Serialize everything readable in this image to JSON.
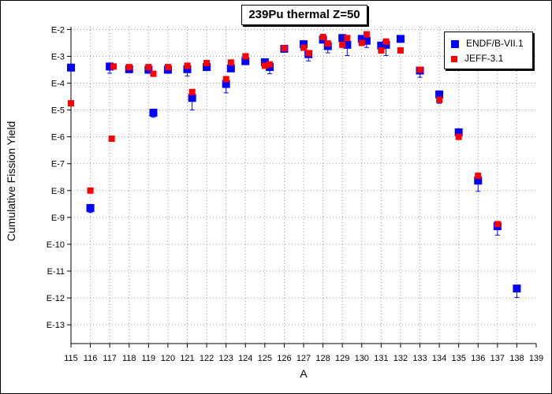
{
  "chart_data": {
    "type": "scatter",
    "title": "239Pu thermal Z=50",
    "xlabel": "A",
    "ylabel": "Cumulative Fission Yield",
    "xlim": [
      115,
      139
    ],
    "ylim_exp": [
      -13.7,
      -1.9
    ],
    "x_ticks": [
      "115",
      "116",
      "117",
      "118",
      "119",
      "120",
      "121",
      "122",
      "123",
      "124",
      "125",
      "126",
      "127",
      "128",
      "129",
      "130",
      "131",
      "132",
      "133",
      "134",
      "135",
      "136",
      "137",
      "138",
      "139"
    ],
    "y_ticks": [
      "E-2",
      "E-3",
      "E-4",
      "E-5",
      "E-6",
      "E-7",
      "E-8",
      "E-9",
      "E-10",
      "E-11",
      "E-12",
      "E-13"
    ],
    "grid": true,
    "legend_position": "top-right",
    "series": [
      {
        "name": "ENDF/B-VII.1",
        "color": "#0000ff",
        "marker": "square",
        "points": [
          {
            "x": 115.0,
            "y": -3.42
          },
          {
            "x": 116.0,
            "y": -8.65,
            "err": 0.17
          },
          {
            "x": 117.0,
            "y": -3.38,
            "err": 0.25
          },
          {
            "x": 118.0,
            "y": -3.48
          },
          {
            "x": 119.0,
            "y": -3.5
          },
          {
            "x": 119.25,
            "y": -5.1,
            "err": 0.17
          },
          {
            "x": 120.0,
            "y": -3.5
          },
          {
            "x": 121.0,
            "y": -3.48,
            "err": 0.25
          },
          {
            "x": 121.25,
            "y": -4.55,
            "err": 0.45
          },
          {
            "x": 122.0,
            "y": -3.4
          },
          {
            "x": 123.0,
            "y": -4.03,
            "err": 0.33
          },
          {
            "x": 123.25,
            "y": -3.45
          },
          {
            "x": 124.0,
            "y": -3.18
          },
          {
            "x": 125.0,
            "y": -3.22
          },
          {
            "x": 125.25,
            "y": -3.4,
            "err": 0.25
          },
          {
            "x": 126.0,
            "y": -2.72
          },
          {
            "x": 127.0,
            "y": -2.55
          },
          {
            "x": 127.25,
            "y": -2.92,
            "err": 0.25
          },
          {
            "x": 128.0,
            "y": -2.38
          },
          {
            "x": 128.25,
            "y": -2.62,
            "err": 0.25
          },
          {
            "x": 129.0,
            "y": -2.32
          },
          {
            "x": 129.25,
            "y": -2.57,
            "err": 0.4
          },
          {
            "x": 130.0,
            "y": -2.35
          },
          {
            "x": 130.25,
            "y": -2.42,
            "err": 0.25
          },
          {
            "x": 131.0,
            "y": -2.6
          },
          {
            "x": 131.25,
            "y": -2.57,
            "err": 0.4
          },
          {
            "x": 132.0,
            "y": -2.35
          },
          {
            "x": 133.0,
            "y": -3.53,
            "err": 0.25
          },
          {
            "x": 134.0,
            "y": -4.42,
            "err": 0.33
          },
          {
            "x": 135.0,
            "y": -5.83,
            "err": 0.25
          },
          {
            "x": 136.0,
            "y": -7.63,
            "err": 0.4
          },
          {
            "x": 137.0,
            "y": -9.33,
            "err": 0.33
          },
          {
            "x": 138.0,
            "y": -11.65,
            "err": 0.33
          }
        ]
      },
      {
        "name": "JEFF-3.1",
        "color": "#ff0000",
        "marker": "square",
        "points": [
          {
            "x": 115.0,
            "y": -4.75
          },
          {
            "x": 116.0,
            "y": -8.0
          },
          {
            "x": 117.1,
            "y": -6.07
          },
          {
            "x": 117.2,
            "y": -3.38
          },
          {
            "x": 118.0,
            "y": -3.4
          },
          {
            "x": 119.0,
            "y": -3.4
          },
          {
            "x": 119.25,
            "y": -3.65
          },
          {
            "x": 120.0,
            "y": -3.4
          },
          {
            "x": 121.0,
            "y": -3.35
          },
          {
            "x": 121.25,
            "y": -4.33
          },
          {
            "x": 122.0,
            "y": -3.25
          },
          {
            "x": 123.0,
            "y": -3.85
          },
          {
            "x": 123.25,
            "y": -3.23
          },
          {
            "x": 124.0,
            "y": -3.0
          },
          {
            "x": 125.0,
            "y": -3.35
          },
          {
            "x": 125.25,
            "y": -3.3
          },
          {
            "x": 126.0,
            "y": -2.7
          },
          {
            "x": 127.0,
            "y": -2.68
          },
          {
            "x": 127.25,
            "y": -2.88
          },
          {
            "x": 128.0,
            "y": -2.28
          },
          {
            "x": 128.25,
            "y": -2.52
          },
          {
            "x": 129.0,
            "y": -2.57
          },
          {
            "x": 129.25,
            "y": -2.32
          },
          {
            "x": 130.0,
            "y": -2.5
          },
          {
            "x": 130.25,
            "y": -2.18
          },
          {
            "x": 131.0,
            "y": -2.78
          },
          {
            "x": 131.25,
            "y": -2.45
          },
          {
            "x": 132.0,
            "y": -2.78
          },
          {
            "x": 133.0,
            "y": -3.5
          },
          {
            "x": 134.0,
            "y": -4.62
          },
          {
            "x": 135.0,
            "y": -6.0
          },
          {
            "x": 136.0,
            "y": -7.45
          },
          {
            "x": 137.0,
            "y": -9.25
          }
        ]
      }
    ]
  }
}
